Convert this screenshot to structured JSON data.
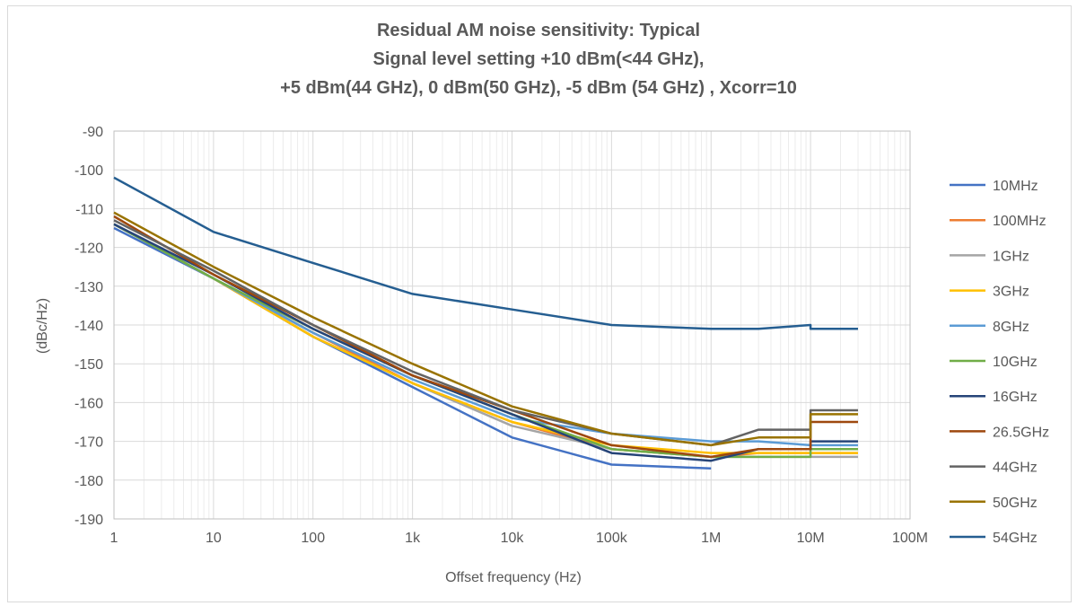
{
  "chart_data": {
    "type": "line",
    "title_lines": [
      "Residual AM noise sensitivity: Typical",
      "Signal level setting  +10 dBm(<44 GHz),",
      "+5 dBm(44 GHz), 0 dBm(50 GHz), -5 dBm (54 GHz) , Xcorr=10"
    ],
    "xlabel": "Offset frequency (Hz)",
    "ylabel": "(dBc/Hz)",
    "x_scale": "log",
    "xlim": [
      1,
      100000000
    ],
    "ylim": [
      -190,
      -90
    ],
    "x_ticks": [
      {
        "value": 1,
        "label": "1"
      },
      {
        "value": 10,
        "label": "10"
      },
      {
        "value": 100,
        "label": "100"
      },
      {
        "value": 1000,
        "label": "1k"
      },
      {
        "value": 10000,
        "label": "10k"
      },
      {
        "value": 100000,
        "label": "100k"
      },
      {
        "value": 1000000,
        "label": "1M"
      },
      {
        "value": 10000000,
        "label": "10M"
      },
      {
        "value": 100000000,
        "label": "100M"
      }
    ],
    "y_ticks": [
      -90,
      -100,
      -110,
      -120,
      -130,
      -140,
      -150,
      -160,
      -170,
      -180,
      -190
    ],
    "grid": "major and minor",
    "legend_position": "right",
    "series": [
      {
        "name": "10MHz",
        "color": "#4472c4",
        "x": [
          1,
          10,
          100,
          1000,
          10000,
          100000,
          1000000
        ],
        "y": [
          -115,
          -128,
          -143,
          -156,
          -169,
          -176,
          -177
        ]
      },
      {
        "name": "100MHz",
        "color": "#ed7d31",
        "x": [
          1,
          10,
          100,
          1000,
          10000,
          100000,
          1000000,
          3000000,
          10000000,
          10000000,
          30000000
        ],
        "y": [
          -114,
          -128,
          -142,
          -155,
          -165,
          -172,
          -174,
          -173,
          -173,
          -173,
          -173
        ]
      },
      {
        "name": "1GHz",
        "color": "#a5a5a5",
        "x": [
          1,
          10,
          100,
          1000,
          10000,
          100000,
          1000000,
          3000000,
          10000000,
          10000000,
          30000000
        ],
        "y": [
          -114,
          -128,
          -143,
          -155,
          -166,
          -172,
          -174,
          -174,
          -174,
          -174,
          -174
        ]
      },
      {
        "name": "3GHz",
        "color": "#ffc000",
        "x": [
          1,
          10,
          100,
          1000,
          10000,
          100000,
          1000000,
          3000000,
          10000000,
          10000000,
          30000000
        ],
        "y": [
          -114,
          -128,
          -143,
          -155,
          -165,
          -171,
          -173,
          -173,
          -173,
          -173,
          -173
        ]
      },
      {
        "name": "8GHz",
        "color": "#5b9bd5",
        "x": [
          1,
          10,
          100,
          1000,
          10000,
          100000,
          1000000,
          3000000,
          10000000,
          10000000,
          30000000
        ],
        "y": [
          -114,
          -128,
          -142,
          -154,
          -164,
          -168,
          -170,
          -170,
          -171,
          -171,
          -171
        ]
      },
      {
        "name": "10GHz",
        "color": "#70ad47",
        "x": [
          1,
          10,
          100,
          1000,
          10000,
          100000,
          1000000,
          3000000,
          10000000,
          10000000,
          30000000
        ],
        "y": [
          -114,
          -128,
          -141,
          -153,
          -163,
          -172,
          -174,
          -174,
          -174,
          -172,
          -172
        ]
      },
      {
        "name": "16GHz",
        "color": "#264478",
        "x": [
          1,
          10,
          100,
          1000,
          10000,
          100000,
          1000000,
          3000000,
          10000000,
          10000000,
          30000000
        ],
        "y": [
          -114,
          -127,
          -141,
          -153,
          -163,
          -173,
          -175,
          -172,
          -172,
          -170,
          -170
        ]
      },
      {
        "name": "26.5GHz",
        "color": "#9e480e",
        "x": [
          1,
          10,
          100,
          1000,
          10000,
          100000,
          1000000,
          3000000,
          10000000,
          10000000,
          30000000
        ],
        "y": [
          -112,
          -127,
          -140,
          -153,
          -162,
          -171,
          -174,
          -172,
          -172,
          -165,
          -165
        ]
      },
      {
        "name": "44GHz",
        "color": "#636363",
        "x": [
          1,
          10,
          100,
          1000,
          10000,
          100000,
          1000000,
          3000000,
          10000000,
          10000000,
          30000000
        ],
        "y": [
          -113,
          -126,
          -140,
          -152,
          -162,
          -168,
          -171,
          -167,
          -167,
          -162,
          -162
        ]
      },
      {
        "name": "50GHz",
        "color": "#997300",
        "x": [
          1,
          10,
          100,
          1000,
          10000,
          100000,
          1000000,
          3000000,
          10000000,
          10000000,
          30000000
        ],
        "y": [
          -111,
          -125,
          -138,
          -150,
          -161,
          -168,
          -171,
          -169,
          -169,
          -163,
          -163
        ]
      },
      {
        "name": "54GHz",
        "color": "#255e91",
        "x": [
          1,
          10,
          100,
          1000,
          10000,
          100000,
          1000000,
          3000000,
          10000000,
          10000000,
          30000000
        ],
        "y": [
          -102,
          -116,
          -124,
          -132,
          -136,
          -140,
          -141,
          -141,
          -140,
          -141,
          -141
        ]
      }
    ]
  }
}
